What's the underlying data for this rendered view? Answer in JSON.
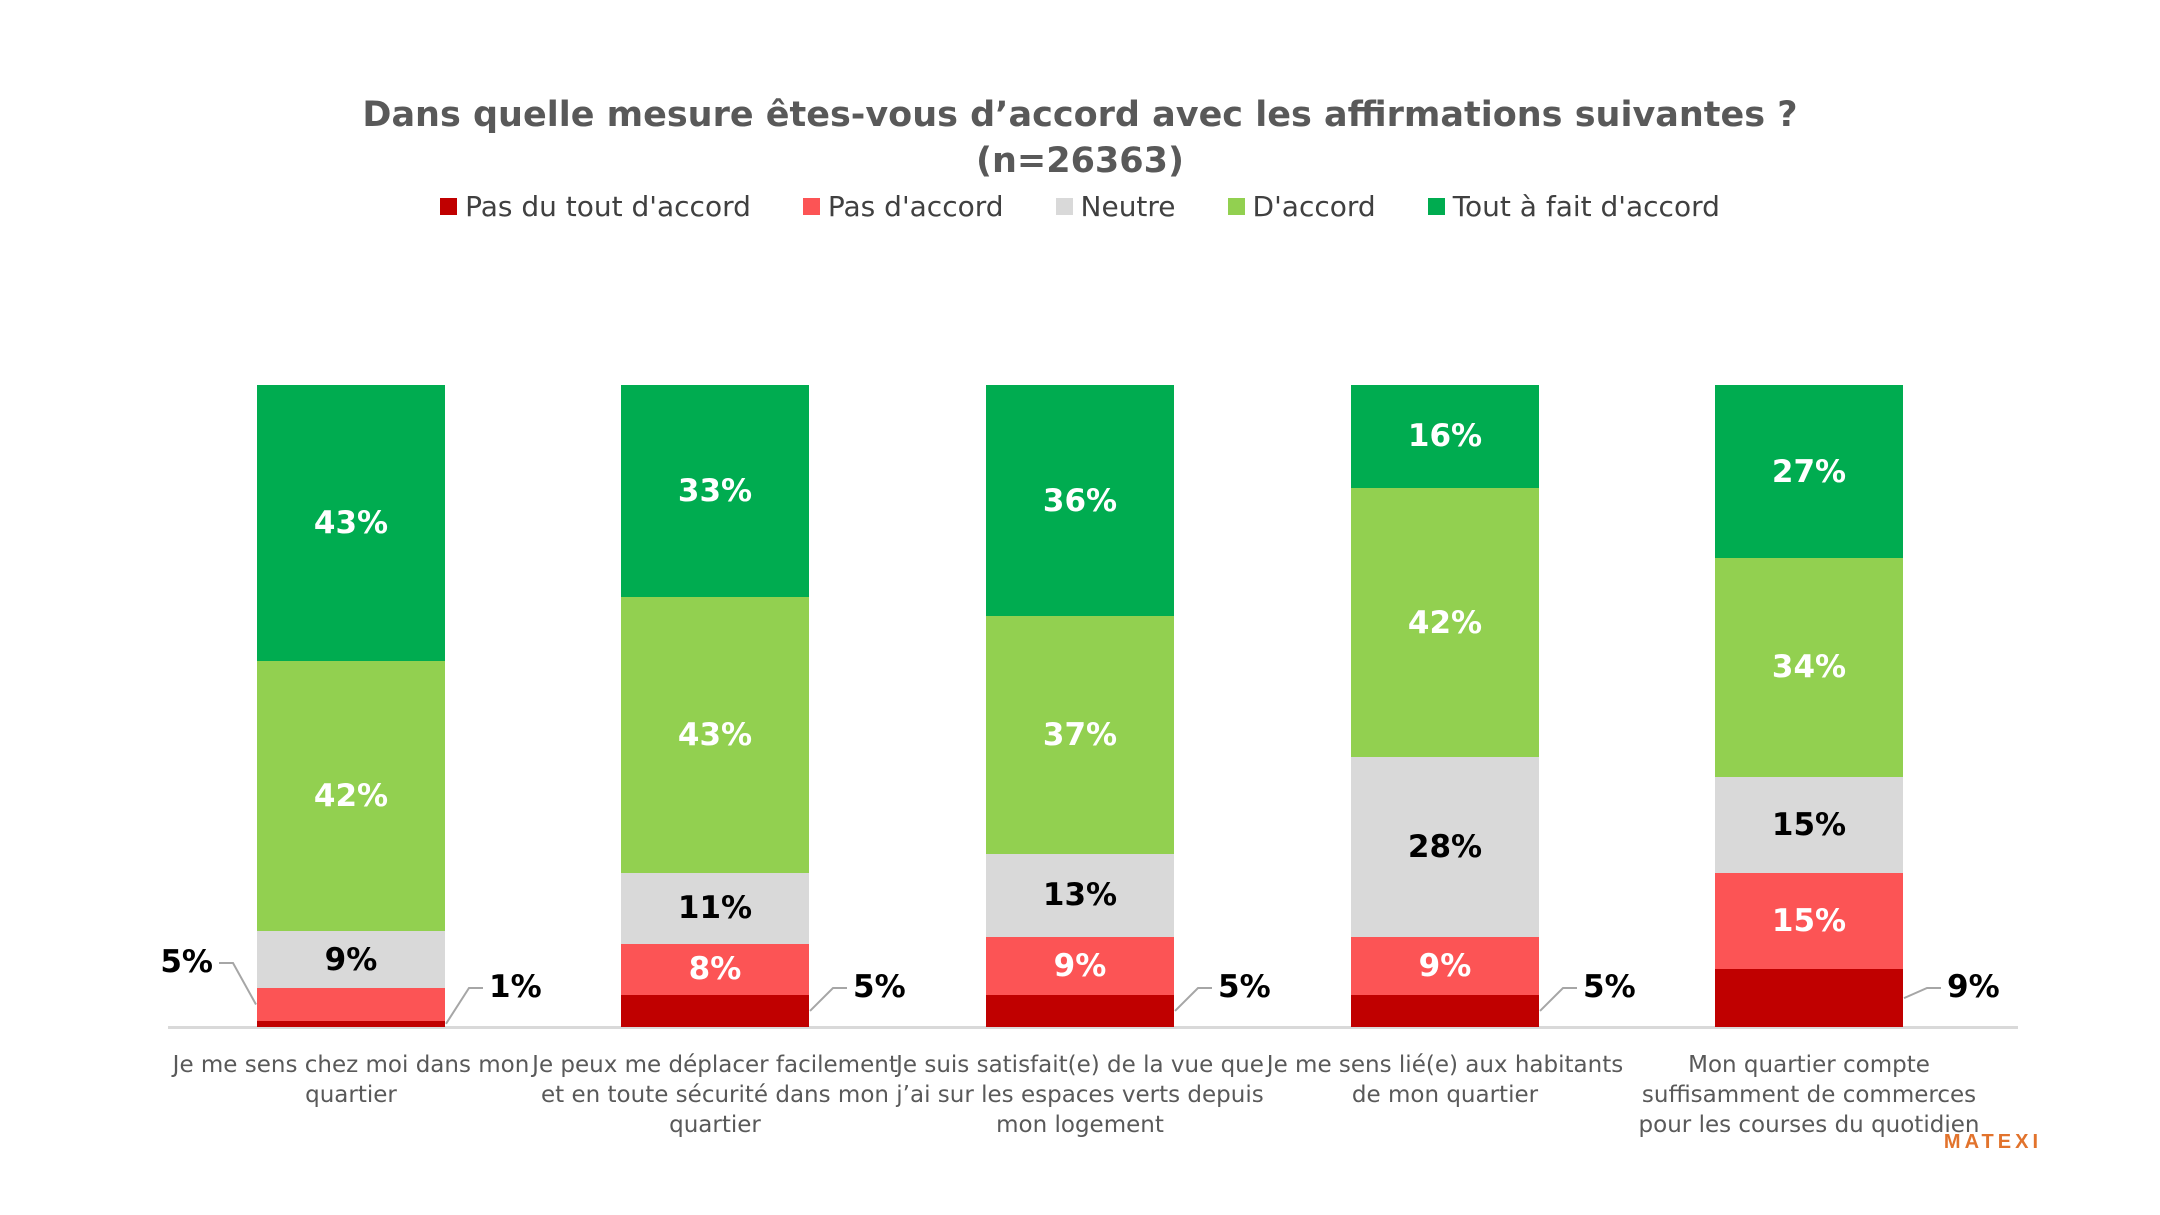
{
  "header": {
    "title": "Dans quelle mesure êtes-vous d’accord avec les affirmations suivantes ?",
    "subtitle": "(n=26363)"
  },
  "footer": {
    "brand": "MATEXI",
    "brand_color": "#e2732c"
  },
  "chart_data": {
    "type": "bar",
    "variant": "stacked-100-percent-column",
    "title": "Dans quelle mesure êtes-vous d’accord avec les affirmations suivantes ?",
    "subtitle": "(n=26363)",
    "ylim": [
      0,
      100
    ],
    "value_suffix": "%",
    "grid": false,
    "legend_position": "top",
    "axis_line_color": "#d9d9d9",
    "leader_line_color": "#a6a6a6",
    "categories": [
      "Je me sens chez moi dans mon quartier",
      "Je peux me déplacer facilement et en toute sécurité dans mon quartier",
      "Je suis satisfait(e) de la vue que j’ai sur les espaces verts depuis mon logement",
      "Je me sens lié(e) aux habitants de mon quartier",
      "Mon quartier compte suffisamment de commerces pour les courses du quotidien"
    ],
    "series": [
      {
        "name": "Pas du tout d'accord",
        "color": "#c00000",
        "label_color": "#ffffff",
        "values": [
          1,
          5,
          5,
          5,
          9
        ]
      },
      {
        "name": "Pas d'accord",
        "color": "#fc5455",
        "label_color": "#ffffff",
        "values": [
          5,
          8,
          9,
          9,
          15
        ]
      },
      {
        "name": "Neutre",
        "color": "#d9d9d9",
        "label_color": "#000000",
        "values": [
          9,
          11,
          13,
          28,
          15
        ]
      },
      {
        "name": "D'accord",
        "color": "#92d050",
        "label_color": "#ffffff",
        "values": [
          42,
          43,
          37,
          42,
          34
        ]
      },
      {
        "name": "Tout à fait d'accord",
        "color": "#00ac50",
        "label_color": "#ffffff",
        "values": [
          43,
          33,
          36,
          16,
          27
        ]
      }
    ],
    "callouts": [
      {
        "category": 0,
        "series": 0,
        "side": "right"
      },
      {
        "category": 0,
        "series": 1,
        "side": "left"
      },
      {
        "category": 1,
        "series": 0,
        "side": "right"
      },
      {
        "category": 2,
        "series": 0,
        "side": "right"
      },
      {
        "category": 3,
        "series": 0,
        "side": "right"
      },
      {
        "category": 4,
        "series": 0,
        "side": "right"
      }
    ]
  }
}
